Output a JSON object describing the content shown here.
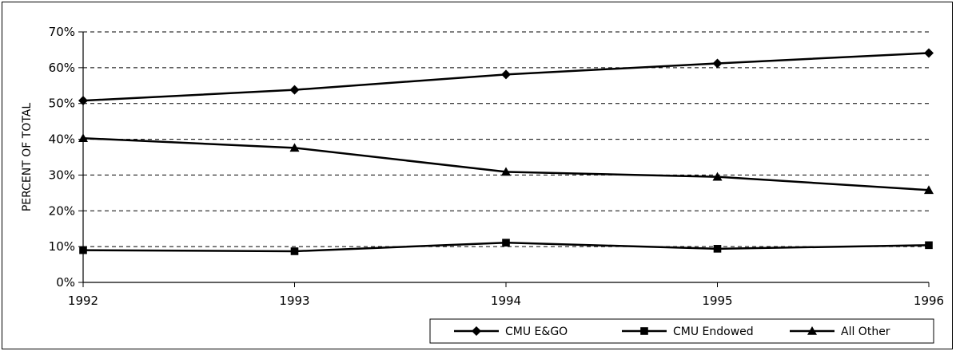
{
  "chart_data": {
    "type": "line",
    "title": "",
    "xlabel": "",
    "ylabel": "PERCENT OF TOTAL",
    "x": [
      "1992",
      "1993",
      "1994",
      "1995",
      "1996"
    ],
    "ylim": [
      0,
      70
    ],
    "yticks": [
      "0%",
      "10%",
      "20%",
      "30%",
      "40%",
      "50%",
      "60%",
      "70%"
    ],
    "grid": "horizontal dashed",
    "legend_position": "bottom-right",
    "series": [
      {
        "name": "CMU E&GO",
        "marker": "diamond",
        "values": [
          50.8,
          53.8,
          58.1,
          61.2,
          64.1
        ]
      },
      {
        "name": "CMU Endowed",
        "marker": "square",
        "values": [
          9.0,
          8.7,
          11.1,
          9.4,
          10.4
        ]
      },
      {
        "name": "All Other",
        "marker": "triangle",
        "values": [
          40.3,
          37.6,
          30.9,
          29.5,
          25.8
        ]
      }
    ],
    "colors": {
      "line": "#000000",
      "grid": "#000000",
      "background": "#ffffff"
    }
  }
}
